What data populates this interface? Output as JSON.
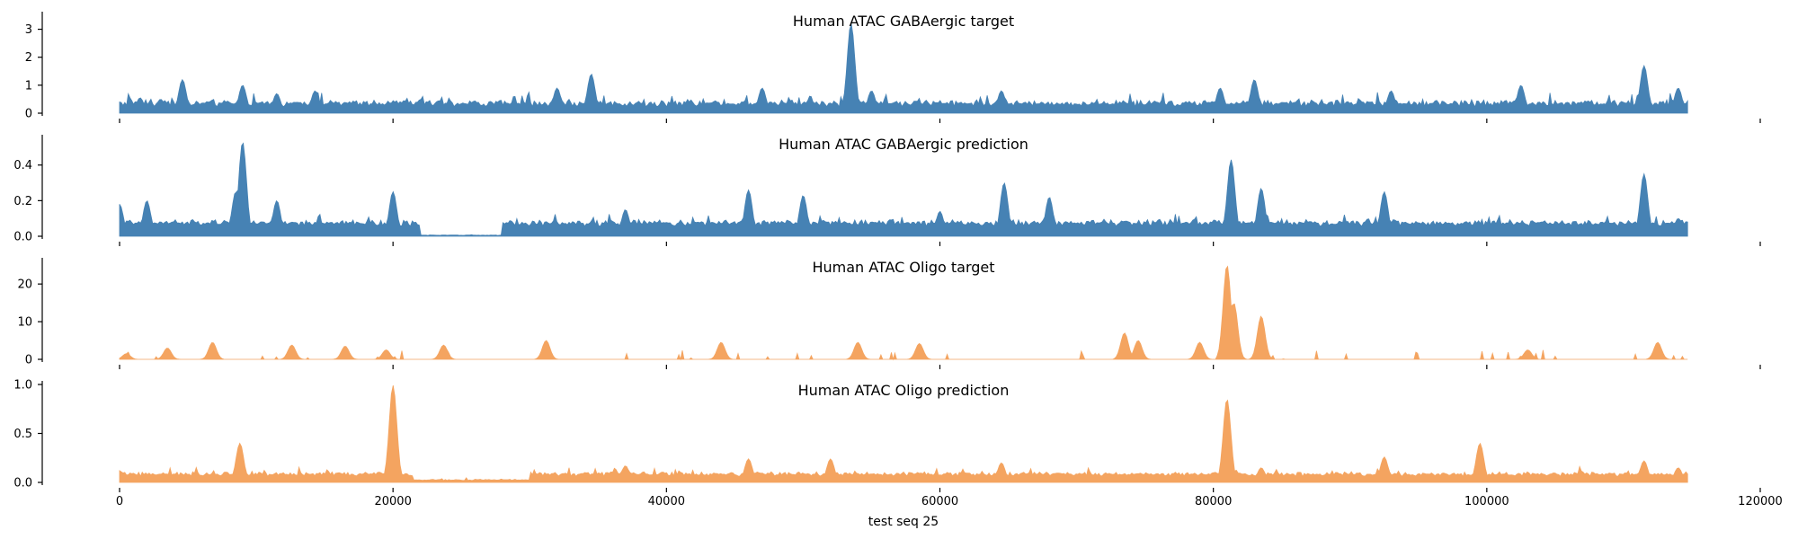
{
  "colors": {
    "gabaergic": "#4682b4",
    "oligo": "#f4a460"
  },
  "chart_data": {
    "type": "area",
    "xlabel": "test seq 25",
    "xlim": [
      0,
      120000
    ],
    "x_end": 114688,
    "x_ticks": [
      0,
      20000,
      40000,
      60000,
      80000,
      100000,
      120000
    ],
    "x_tick_labels": [
      "0",
      "20000",
      "40000",
      "60000",
      "80000",
      "100000",
      "120000"
    ],
    "panels": [
      {
        "title": "Human ATAC GABAergic target",
        "color": "gabaergic",
        "ylim": [
          0,
          3.5
        ],
        "y_ticks": [
          0,
          1,
          2,
          3
        ],
        "y_tick_labels": [
          "0",
          "1",
          "2",
          "3"
        ],
        "peak_x": [
          0,
          1500,
          3000,
          4600,
          9000,
          11500,
          14300,
          20000,
          32000,
          34500,
          47000,
          53500,
          55000,
          64500,
          80500,
          83000,
          93000,
          102500,
          111500,
          114000
        ],
        "peak_y": [
          0.4,
          0.55,
          0.5,
          1.2,
          1.0,
          0.7,
          0.8,
          0.4,
          0.9,
          1.4,
          0.9,
          3.2,
          0.8,
          0.8,
          0.9,
          1.2,
          0.8,
          1.0,
          1.7,
          0.9
        ]
      },
      {
        "title": "Human ATAC GABAergic prediction",
        "color": "gabaergic",
        "ylim": [
          0,
          0.55
        ],
        "y_ticks": [
          0,
          0.2,
          0.4
        ],
        "y_tick_labels": [
          "0.0",
          "0.2",
          "0.4"
        ],
        "peak_x": [
          0,
          2000,
          8500,
          9000,
          11500,
          20000,
          24000,
          37000,
          46000,
          50000,
          60000,
          64700,
          68000,
          81300,
          83500,
          92500,
          111500,
          114000
        ],
        "peak_y": [
          0.18,
          0.2,
          0.25,
          0.53,
          0.2,
          0.25,
          0.005,
          0.15,
          0.26,
          0.23,
          0.14,
          0.3,
          0.22,
          0.43,
          0.27,
          0.25,
          0.35,
          0.1
        ]
      },
      {
        "title": "Human ATAC Oligo target",
        "color": "oligo",
        "ylim": [
          0,
          26
        ],
        "y_ticks": [
          0,
          10,
          20
        ],
        "y_tick_labels": [
          "0",
          "10",
          "20"
        ],
        "peak_x": [
          500,
          3500,
          6800,
          12600,
          16500,
          19500,
          23700,
          31200,
          44000,
          54000,
          58500,
          73500,
          74500,
          79000,
          81000,
          81500,
          83500,
          103000,
          112500
        ],
        "peak_y": [
          1.5,
          3.0,
          4.5,
          3.8,
          3.5,
          2.5,
          3.8,
          5.0,
          4.5,
          4.5,
          4.2,
          7.0,
          5.0,
          4.5,
          25.0,
          15.0,
          11.5,
          2.5,
          4.5
        ]
      },
      {
        "title": "Human ATAC Oligo prediction",
        "color": "oligo",
        "ylim": [
          0,
          1.0
        ],
        "y_ticks": [
          0,
          0.5,
          1.0
        ],
        "y_tick_labels": [
          "0.0",
          "0.5",
          "1.0"
        ],
        "peak_x": [
          0,
          8800,
          20000,
          24000,
          37000,
          46000,
          52000,
          64500,
          81000,
          83500,
          92500,
          99500,
          111500,
          114000
        ],
        "peak_y": [
          0.12,
          0.4,
          0.99,
          0.01,
          0.17,
          0.24,
          0.24,
          0.2,
          0.85,
          0.15,
          0.26,
          0.4,
          0.22,
          0.15
        ]
      }
    ]
  }
}
